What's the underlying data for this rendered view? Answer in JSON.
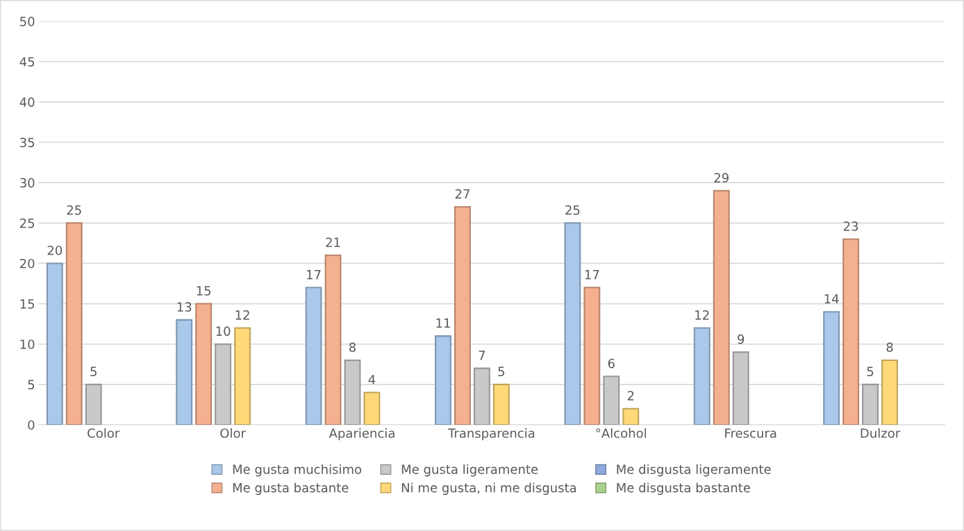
{
  "chart_data": {
    "type": "bar",
    "categories": [
      "Color",
      "Olor",
      "Apariencia",
      "Transparencia",
      "°Alcohol",
      "Frescura",
      "Dulzor"
    ],
    "series": [
      {
        "name": "Me gusta muchisimo",
        "color": "#a9c8ea",
        "values": [
          20,
          13,
          17,
          11,
          25,
          12,
          14
        ]
      },
      {
        "name": "Me gusta bastante",
        "color": "#f4b08f",
        "values": [
          25,
          15,
          21,
          27,
          17,
          29,
          23
        ]
      },
      {
        "name": "Me gusta ligeramente",
        "color": "#c9c9c9",
        "values": [
          5,
          10,
          8,
          7,
          6,
          9,
          5
        ]
      },
      {
        "name": "Ni me gusta, ni me disgusta",
        "color": "#ffd978",
        "values": [
          null,
          12,
          4,
          5,
          2,
          null,
          8
        ]
      },
      {
        "name": "Me disgusta ligeramente",
        "color": "#8faadc",
        "values": [
          null,
          null,
          null,
          null,
          null,
          null,
          null
        ]
      },
      {
        "name": "Me disgusta bastante",
        "color": "#a9d18e",
        "values": [
          null,
          null,
          null,
          null,
          null,
          null,
          null
        ]
      }
    ],
    "ylim": [
      0,
      50
    ],
    "yticks": [
      0,
      5,
      10,
      15,
      20,
      25,
      30,
      35,
      40,
      45,
      50
    ],
    "grid": "y",
    "legend": "bottom",
    "data_labels": true
  }
}
